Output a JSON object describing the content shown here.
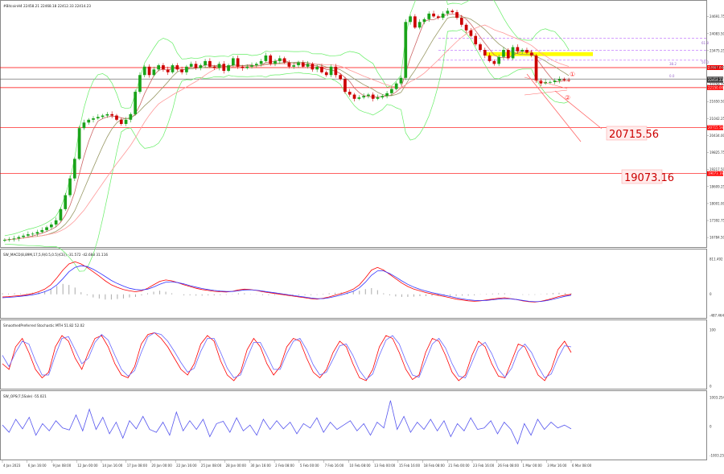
{
  "header": {
    "main_title": "#BitcoinH4  22458.21  22468.18  22412.33  22414.23",
    "macd_title": "SW_MACD(8,89M,17,5,9(0.5,0.5)(CE))  -31.572  -42.688  31.116",
    "stoch_title": "SmoothedPreferred Stochastic  MTH  51.82  52.02",
    "osc_title": "SW_OPS(7,5Sale)  -55.021"
  },
  "annotations": {
    "level_1": "20715.56",
    "level_2": "19073.16",
    "fib_1": "61.8",
    "fib_2": "38.2",
    "fib_3": "50.0",
    "fib_4": "0.0"
  },
  "chart_data": [
    {
      "type": "candlestick",
      "title": "#BitcoinH4",
      "ohlc_header": [
        22458.21,
        22468.18,
        22412.33,
        22414.23
      ],
      "ylim": [
        16500,
        25200
      ],
      "y_ticks": [
        25300.0,
        24691.75,
        24083.5,
        23475.25,
        22867.0,
        22258.75,
        21650.5,
        21042.25,
        20434.0,
        19825.75,
        19217.5,
        18609.25,
        18001.0,
        17392.75,
        16784.5
      ],
      "x_ticks": [
        "4 Jan 2023",
        "6 Jan 16:00",
        "9 Jan 08:00",
        "12 Jan 00:00",
        "14 Jan 16:00",
        "17 Jan 08:00",
        "20 Jan 00:00",
        "22 Jan 16:00",
        "25 Jan 08:00",
        "28 Jan 00:00",
        "30 Jan 16:00",
        "2 Feb 08:00",
        "5 Feb 00:00",
        "7 Feb 16:00",
        "10 Feb 08:00",
        "13 Feb 00:00",
        "15 Feb 16:00",
        "18 Feb 08:00",
        "21 Feb 00:00",
        "23 Feb 16:00",
        "26 Feb 08:00",
        "1 Mar 00:00",
        "3 Mar 16:00",
        "6 Mar 08:00"
      ],
      "close_path": [
        16700,
        16720,
        16750,
        16800,
        16850,
        16900,
        16920,
        16980,
        17050,
        17150,
        17250,
        17400,
        17800,
        18300,
        18900,
        19600,
        20700,
        20900,
        21000,
        21050,
        21100,
        21150,
        21200,
        21150,
        21000,
        20850,
        21000,
        21200,
        22000,
        22600,
        22900,
        22600,
        22800,
        22950,
        22800,
        22700,
        22950,
        22800,
        22700,
        22900,
        23000,
        22850,
        22950,
        23100,
        22900,
        22850,
        23000,
        22750,
        22950,
        23200,
        22900,
        22850,
        22900,
        22950,
        23000,
        23100,
        23300,
        23000,
        23100,
        23200,
        23050,
        22900,
        22950,
        23050,
        22900,
        23000,
        22800,
        22900,
        22700,
        22600,
        22900,
        22600,
        22450,
        22000,
        21900,
        21750,
        21800,
        21850,
        21900,
        21750,
        21800,
        21850,
        21950,
        22100,
        22300,
        22500,
        24500,
        24700,
        24300,
        24500,
        24600,
        24800,
        24700,
        24650,
        24800,
        24900,
        24850,
        24650,
        24400,
        24200,
        24000,
        23700,
        23500,
        23300,
        23100,
        23000,
        23250,
        23500,
        23200,
        23600,
        23450,
        23500,
        23400,
        23300,
        22400,
        22300,
        22350,
        22350,
        22400,
        22450,
        22420,
        22414
      ],
      "levels": [
        {
          "value": 22867.0,
          "color": "#ff0000"
        },
        {
          "value": 22458.21,
          "color": "#555555"
        },
        {
          "value": 22150.0,
          "color": "#ff0000"
        },
        {
          "value": 20715.56,
          "color": "#ff0000"
        },
        {
          "value": 19073.16,
          "color": "#ff0000"
        }
      ],
      "highlight_zone": {
        "from": 23280,
        "to": 23420,
        "color": "#ffff00"
      },
      "fib_levels": [
        23920,
        23480,
        23130
      ],
      "ma_colors": [
        "#cc6666",
        "#999966",
        "#ff9999"
      ],
      "bands_color": "#66ee66",
      "bull_color": "#1aa31a",
      "bear_color": "#cc0000",
      "last_price_label": "22414.23"
    },
    {
      "type": "line",
      "title": "SW_MACD",
      "ylim": [
        -487.464,
        811.492
      ],
      "y_ticks": [
        811.492,
        0.0,
        -487.464
      ],
      "series": [
        {
          "color": "#ff0000",
          "values": [
            -60,
            -55,
            -40,
            -30,
            -10,
            20,
            60,
            120,
            220,
            380,
            560,
            700,
            750,
            700,
            620,
            520,
            420,
            310,
            220,
            160,
            110,
            80,
            60,
            80,
            140,
            220,
            300,
            330,
            310,
            270,
            220,
            180,
            140,
            110,
            90,
            70,
            60,
            55,
            70,
            100,
            120,
            110,
            90,
            60,
            40,
            20,
            0,
            -20,
            -40,
            -60,
            -80,
            -100,
            -110,
            -90,
            -60,
            -20,
            20,
            60,
            120,
            220,
            380,
            560,
            620,
            560,
            460,
            360,
            260,
            180,
            120,
            80,
            40,
            10,
            -20,
            -50,
            -80,
            -110,
            -130,
            -150,
            -160,
            -150,
            -130,
            -110,
            -90,
            -80,
            -100,
            -120,
            -150,
            -170,
            -180,
            -160,
            -130,
            -90,
            -50,
            -20,
            0
          ]
        },
        {
          "color": "#3333ff",
          "values": [
            -80,
            -70,
            -60,
            -45,
            -30,
            -10,
            20,
            60,
            120,
            220,
            360,
            520,
            620,
            660,
            640,
            580,
            500,
            410,
            320,
            250,
            190,
            140,
            110,
            100,
            120,
            170,
            230,
            280,
            290,
            270,
            240,
            200,
            165,
            135,
            110,
            90,
            75,
            65,
            65,
            80,
            100,
            105,
            95,
            75,
            55,
            35,
            15,
            -5,
            -25,
            -45,
            -65,
            -85,
            -100,
            -100,
            -80,
            -50,
            -15,
            25,
            70,
            150,
            280,
            440,
            540,
            540,
            480,
            400,
            310,
            230,
            165,
            115,
            75,
            40,
            10,
            -20,
            -50,
            -80,
            -105,
            -125,
            -140,
            -145,
            -140,
            -125,
            -110,
            -100,
            -105,
            -120,
            -140,
            -160,
            -170,
            -165,
            -145,
            -115,
            -80,
            -45,
            -20
          ]
        }
      ],
      "histogram_color": "#aaaaaa"
    },
    {
      "type": "line",
      "title": "SmoothedPreferred Stochastic",
      "ylim": [
        0,
        100
      ],
      "y_ticks": [
        100,
        0
      ],
      "series": [
        {
          "color": "#ff0000",
          "values": [
            40,
            30,
            70,
            85,
            60,
            30,
            15,
            25,
            70,
            90,
            80,
            50,
            30,
            60,
            85,
            90,
            70,
            40,
            20,
            15,
            35,
            75,
            92,
            95,
            85,
            70,
            50,
            30,
            20,
            40,
            75,
            90,
            80,
            45,
            20,
            10,
            25,
            65,
            85,
            70,
            40,
            20,
            35,
            70,
            85,
            80,
            50,
            25,
            15,
            30,
            60,
            80,
            70,
            40,
            15,
            10,
            30,
            70,
            90,
            85,
            60,
            30,
            12,
            20,
            60,
            85,
            80,
            55,
            25,
            10,
            20,
            55,
            80,
            70,
            40,
            18,
            15,
            45,
            75,
            70,
            45,
            20,
            10,
            30,
            65,
            80,
            60
          ]
        },
        {
          "color": "#6666ff",
          "values": [
            55,
            35,
            60,
            80,
            75,
            45,
            20,
            20,
            55,
            85,
            88,
            65,
            40,
            50,
            78,
            92,
            82,
            55,
            30,
            18,
            28,
            60,
            88,
            95,
            92,
            80,
            62,
            42,
            25,
            32,
            62,
            85,
            85,
            60,
            32,
            15,
            20,
            50,
            78,
            78,
            55,
            30,
            30,
            58,
            80,
            85,
            65,
            38,
            20,
            25,
            48,
            72,
            75,
            55,
            28,
            12,
            22,
            55,
            82,
            90,
            75,
            45,
            20,
            16,
            45,
            75,
            85,
            68,
            40,
            18,
            15,
            42,
            70,
            78,
            58,
            30,
            16,
            32,
            62,
            75,
            60,
            35,
            15,
            22,
            50,
            72,
            70
          ]
        }
      ]
    },
    {
      "type": "line",
      "title": "SW_OPS",
      "ylim": [
        -1003.25,
        1003.254
      ],
      "y_ticks": [
        1003.254,
        0.0,
        -1003.25
      ],
      "series": [
        {
          "color": "#5555ee",
          "values": [
            50,
            -200,
            250,
            -80,
            320,
            -300,
            100,
            -150,
            200,
            -50,
            -120,
            400,
            -150,
            600,
            -100,
            320,
            -250,
            150,
            -400,
            200,
            -80,
            350,
            -100,
            -200,
            150,
            -300,
            500,
            -150,
            200,
            -100,
            250,
            -350,
            100,
            180,
            -200,
            300,
            -150,
            50,
            -300,
            250,
            -100,
            200,
            -80,
            150,
            -250,
            100,
            -50,
            300,
            -200,
            150,
            -100,
            50,
            200,
            -150,
            100,
            -300,
            150,
            -50,
            900,
            -100,
            350,
            -200,
            150,
            -100,
            250,
            -150,
            200,
            -350,
            100,
            -150,
            300,
            -100,
            -50,
            200,
            -250,
            150,
            -100,
            -600,
            100,
            -300,
            250,
            -100,
            150,
            -50,
            50,
            -80
          ]
        }
      ]
    }
  ]
}
